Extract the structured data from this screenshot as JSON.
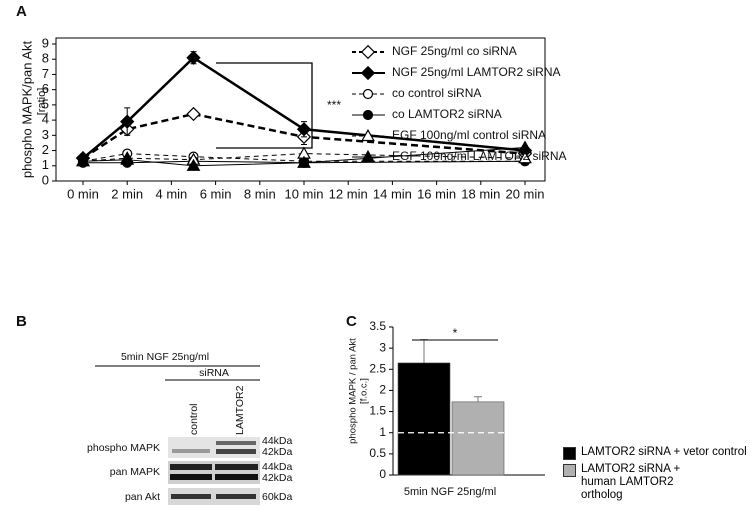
{
  "panels": [
    "A",
    "B",
    "C"
  ],
  "chart_data": [
    {
      "type": "line",
      "ylabel": [
        "phospho MAPK/pan Akt",
        "[ratio]"
      ],
      "annotation": "***",
      "x": [
        0,
        2,
        5,
        10,
        20
      ],
      "xlim": [
        0,
        20
      ],
      "xticks": [
        {
          "value": 0,
          "label": "0 min"
        },
        {
          "value": 2,
          "label": "2 min"
        },
        {
          "value": 4,
          "label": "4 min"
        },
        {
          "value": 6,
          "label": "6 min"
        },
        {
          "value": 8,
          "label": "8 min"
        },
        {
          "value": 10,
          "label": "10 min"
        },
        {
          "value": 12,
          "label": "12 min"
        },
        {
          "value": 14,
          "label": "14 min"
        },
        {
          "value": 16,
          "label": "16 min"
        },
        {
          "value": 18,
          "label": "18 min"
        },
        {
          "value": 20,
          "label": "20 min"
        }
      ],
      "ylim": [
        0,
        9
      ],
      "yticks": [
        0,
        1,
        2,
        3,
        4,
        5,
        6,
        7,
        8,
        9
      ],
      "series": [
        {
          "name": "NGF 25ng/ml co siRNA",
          "color": "#000000",
          "marker": "diamond",
          "filled": false,
          "dashed": true,
          "width": 2.5,
          "values": [
            1.5,
            3.4,
            4.4,
            2.9,
            1.8
          ],
          "errors": [
            0.1,
            0.3,
            0.1,
            0.5,
            0.1
          ]
        },
        {
          "name": "NGF 25ng/ml LAMTOR2 siRNA",
          "color": "#000000",
          "marker": "diamond",
          "filled": true,
          "dashed": false,
          "width": 2.5,
          "values": [
            1.5,
            3.9,
            8.1,
            3.4,
            2.0
          ],
          "errors": [
            0.1,
            0.9,
            0.4,
            0.5,
            0.1
          ]
        },
        {
          "name": "co control siRNA",
          "color": "#000000",
          "marker": "circle",
          "filled": false,
          "dashed": true,
          "width": 1,
          "values": [
            1.3,
            1.8,
            1.6,
            1.3,
            1.3
          ],
          "errors": [
            0.1,
            0.1,
            0.1,
            0.1,
            0.1
          ]
        },
        {
          "name": "co LAMTOR2 siRNA",
          "color": "#000000",
          "marker": "circle",
          "filled": true,
          "dashed": false,
          "width": 1,
          "values": [
            1.2,
            1.2,
            1.3,
            1.2,
            1.3
          ],
          "errors": [
            0.1,
            0.1,
            0.1,
            0.1,
            0.1
          ]
        },
        {
          "name": "EGF 100ng/ml control siRNA",
          "color": "#000000",
          "marker": "triangle",
          "filled": false,
          "dashed": true,
          "width": 1,
          "values": [
            1.3,
            1.5,
            1.4,
            1.8,
            1.5
          ],
          "errors": [
            0.1,
            0.1,
            0.1,
            0.1,
            0.1
          ]
        },
        {
          "name": "EGF 100ng/ml LAMTOR2 siRNA",
          "color": "#000000",
          "marker": "triangle",
          "filled": true,
          "dashed": false,
          "width": 1,
          "values": [
            1.3,
            1.4,
            1.0,
            1.2,
            2.2
          ],
          "errors": [
            0.1,
            0.1,
            0.1,
            0.1,
            0.1
          ]
        }
      ]
    },
    {
      "type": "bar",
      "ylabel": [
        "phospho MAPK / pan Akt",
        "[f.o.c.]"
      ],
      "annotation": "*",
      "categories": [
        "5min NGF 25ng/ml"
      ],
      "ylim": [
        0,
        3.5
      ],
      "yticks": [
        0,
        0.5,
        1,
        1.5,
        2,
        2.5,
        3,
        3.5
      ],
      "reference_line": 1,
      "series": [
        {
          "name": "LAMTOR2 siRNA + vetor control",
          "color": "#000000",
          "values": [
            2.65
          ],
          "errors": [
            0.55
          ]
        },
        {
          "name": "LAMTOR2 siRNA + human LAMTOR2 ortholog",
          "color": "#b0b0b0",
          "values": [
            1.73
          ],
          "errors": [
            0.12
          ]
        }
      ]
    }
  ],
  "blot": {
    "treatment": "5min NGF 25ng/ml",
    "group": "siRNA",
    "lanes": [
      "control",
      "LAMTOR2"
    ],
    "rows": [
      {
        "label": "phospho MAPK",
        "sizes": [
          "44kDa",
          "42kDa"
        ]
      },
      {
        "label": "pan MAPK",
        "sizes": [
          "44kDa",
          "42kDa"
        ]
      },
      {
        "label": "pan Akt",
        "sizes": [
          "60kDa"
        ]
      }
    ]
  }
}
